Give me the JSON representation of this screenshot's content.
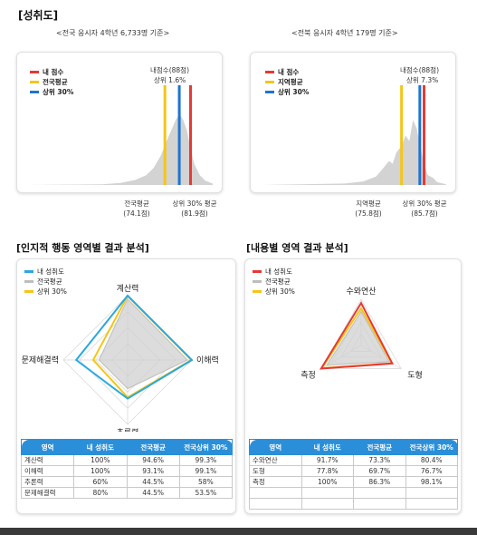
{
  "header": {
    "title": "[성취도]"
  },
  "achievement": {
    "national": {
      "subtitle": "<전국 응시자 4학년 6,733명 기준>",
      "legend": [
        {
          "label": "내 점수",
          "color": "#e53935"
        },
        {
          "label": "전국평균",
          "color": "#f5c518"
        },
        {
          "label": "상위 30%",
          "color": "#1e74d0"
        }
      ],
      "note_line1": "내점수(88점)",
      "note_line2": "상위 1.6%",
      "avg_label": "전국평균",
      "avg_value": "(74.1점)",
      "top30_label": "상위 30% 평균",
      "top30_value": "(81.9점)"
    },
    "regional": {
      "subtitle": "<전북 응시자 4학년 179명 기준>",
      "legend": [
        {
          "label": "내 점수",
          "color": "#e53935"
        },
        {
          "label": "지역평균",
          "color": "#f5c518"
        },
        {
          "label": "상위 30%",
          "color": "#1e74d0"
        }
      ],
      "note_line1": "내점수(88점)",
      "note_line2": "상위 7.3%",
      "avg_label": "지역평균",
      "avg_value": "(75.8점)",
      "top30_label": "상위 30% 평균",
      "top30_value": "(85.7점)"
    }
  },
  "cognitive": {
    "title": "[인지적 행동 영역별 결과 분석]",
    "legend": [
      {
        "label": "내 성취도",
        "color": "#29a8e0"
      },
      {
        "label": "전국평균",
        "color": "#bdbdbd"
      },
      {
        "label": "상위 30%",
        "color": "#f5c518"
      }
    ],
    "table": {
      "headers": [
        "영역",
        "내 성취도",
        "전국평균",
        "전국상위 30%"
      ],
      "rows": [
        [
          "계산력",
          "100%",
          "94.6%",
          "99.3%"
        ],
        [
          "이해력",
          "100%",
          "93.1%",
          "99.1%"
        ],
        [
          "추론력",
          "60%",
          "44.5%",
          "58%"
        ],
        [
          "문제해결력",
          "80%",
          "44.5%",
          "53.5%"
        ]
      ]
    }
  },
  "content": {
    "title": "[내용별 영역 결과 분석]",
    "legend": [
      {
        "label": "내 성취도",
        "color": "#e53935"
      },
      {
        "label": "전국평균",
        "color": "#bdbdbd"
      },
      {
        "label": "상위 30%",
        "color": "#f5c518"
      }
    ],
    "table": {
      "headers": [
        "영역",
        "내 성취도",
        "전국평균",
        "전국상위 30%"
      ],
      "rows": [
        [
          "수와연산",
          "91.7%",
          "73.3%",
          "80.4%"
        ],
        [
          "도형",
          "77.8%",
          "69.7%",
          "76.7%"
        ],
        [
          "측정",
          "100%",
          "86.3%",
          "98.1%"
        ],
        [
          "",
          "",
          "",
          ""
        ],
        [
          "",
          "",
          "",
          ""
        ]
      ]
    }
  },
  "chart_data": [
    {
      "type": "area",
      "title": "<전국 응시자 4학년 6,733명 기준>",
      "markers": [
        {
          "series": "내 점수",
          "value": 88,
          "color": "#e53935"
        },
        {
          "series": "전국평균",
          "value": 74.1,
          "color": "#f5c518"
        },
        {
          "series": "상위 30%",
          "value": 81.9,
          "color": "#1e74d0"
        }
      ]
    },
    {
      "type": "area",
      "title": "<전북 응시자 4학년 179명 기준>",
      "markers": [
        {
          "series": "내 점수",
          "value": 88,
          "color": "#e53935"
        },
        {
          "series": "지역평균",
          "value": 75.8,
          "color": "#f5c518"
        },
        {
          "series": "상위 30%",
          "value": 85.7,
          "color": "#1e74d0"
        }
      ]
    },
    {
      "type": "radar",
      "axes": [
        "계산력",
        "이해력",
        "추론력",
        "문제해결력"
      ],
      "series": [
        {
          "name": "내 성취도",
          "values": [
            100,
            100,
            60,
            80
          ],
          "color": "#29a8e0"
        },
        {
          "name": "전국평균",
          "values": [
            94.6,
            93.1,
            44.5,
            44.5
          ],
          "color": "#bdbdbd"
        },
        {
          "name": "상위 30%",
          "values": [
            99.3,
            99.1,
            58,
            53.5
          ],
          "color": "#f5c518"
        }
      ]
    },
    {
      "type": "radar",
      "axes": [
        "수와연산",
        "도형",
        "측정"
      ],
      "series": [
        {
          "name": "내 성취도",
          "values": [
            91.7,
            77.8,
            100
          ],
          "color": "#e53935"
        },
        {
          "name": "전국평균",
          "values": [
            73.3,
            69.7,
            86.3
          ],
          "color": "#bdbdbd"
        },
        {
          "name": "상위 30%",
          "values": [
            80.4,
            76.7,
            98.1
          ],
          "color": "#f5c518"
        }
      ]
    }
  ]
}
